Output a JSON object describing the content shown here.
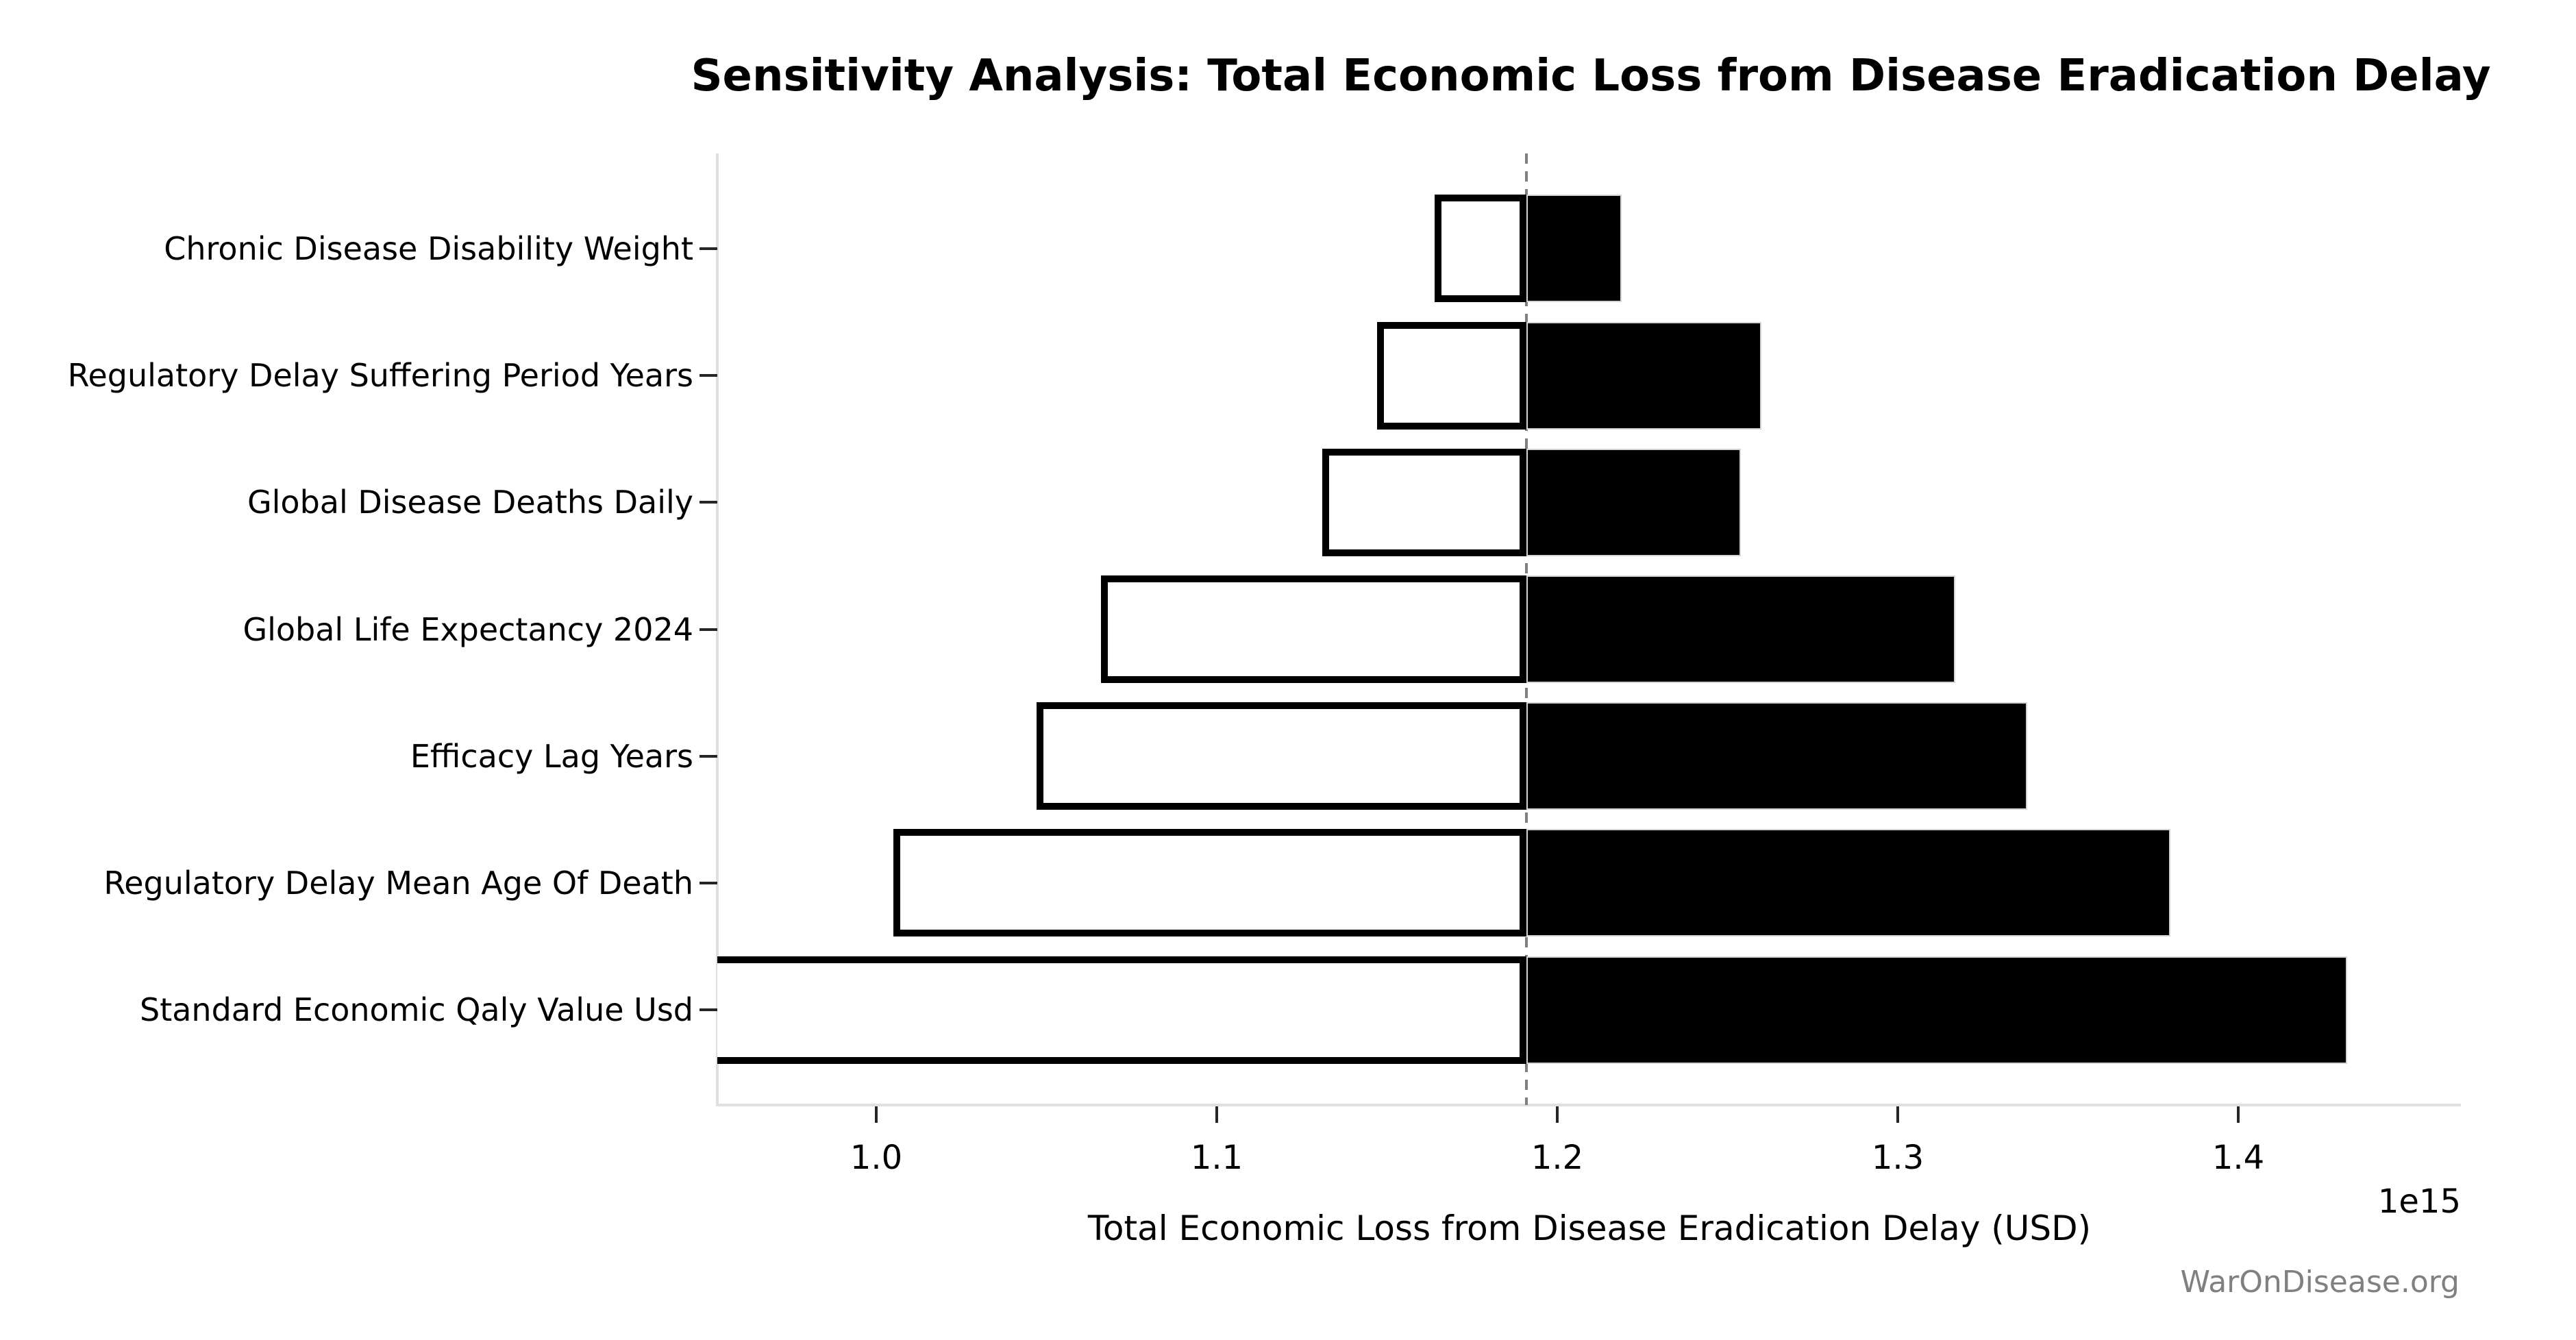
{
  "figure": {
    "watermark": "WarOnDisease.org"
  },
  "colors": {
    "bar_low_fill": "#ffffff",
    "bar_low_edge": "#000000",
    "bar_high_fill": "#000000",
    "baseline_line": "#7f7f7f",
    "axis_spine": "#e0e0e0",
    "tick_mark": "#262626",
    "watermark_text": "#808080"
  },
  "chart_data": {
    "type": "bar",
    "subtype": "tornado-sensitivity",
    "orientation": "horizontal",
    "title": "Sensitivity Analysis: Total Economic Loss from Disease Eradication Delay",
    "xlabel": "Total Economic Loss from Disease Eradication Delay (USD)",
    "ylabel": "",
    "x_offset_label": "1e15",
    "categories": [
      "Chronic Disease Disability Weight",
      "Regulatory Delay Suffering Period Years",
      "Global Disease Deaths Daily",
      "Global Life Expectancy 2024",
      "Efficacy Lag Years",
      "Regulatory Delay Mean Age Of Death",
      "Standard Economic Qaly Value Usd"
    ],
    "series": [
      {
        "name": "low_value_e15",
        "color": "#ffffff",
        "values": [
          1.164,
          1.147,
          1.131,
          1.066,
          1.047,
          1.005,
          0.95
        ]
      },
      {
        "name": "high_value_e15",
        "color": "#000000",
        "values": [
          1.219,
          1.26,
          1.254,
          1.317,
          1.338,
          1.38,
          1.432
        ]
      }
    ],
    "baseline_value_e15": 1.191,
    "x_ticks": [
      1.0,
      1.1,
      1.2,
      1.3,
      1.4
    ],
    "x_tick_labels": [
      "1.0",
      "1.1",
      "1.2",
      "1.3",
      "1.4"
    ],
    "xlim_e15": [
      0.953,
      1.465
    ],
    "grid": false,
    "legend_position": "none",
    "baseline_style": {
      "dashed": true,
      "color": "#7f7f7f"
    }
  }
}
